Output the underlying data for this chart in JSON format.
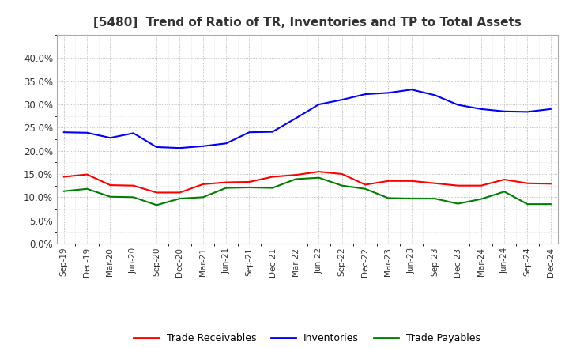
{
  "title": "[5480]  Trend of Ratio of TR, Inventories and TP to Total Assets",
  "x_labels": [
    "Sep-19",
    "Dec-19",
    "Mar-20",
    "Jun-20",
    "Sep-20",
    "Dec-20",
    "Mar-21",
    "Jun-21",
    "Sep-21",
    "Dec-21",
    "Mar-22",
    "Jun-22",
    "Sep-22",
    "Dec-22",
    "Mar-23",
    "Jun-23",
    "Sep-23",
    "Dec-23",
    "Mar-24",
    "Jun-24",
    "Sep-24",
    "Dec-24"
  ],
  "trade_receivables": [
    0.144,
    0.149,
    0.126,
    0.125,
    0.11,
    0.11,
    0.128,
    0.132,
    0.133,
    0.144,
    0.148,
    0.155,
    0.15,
    0.127,
    0.135,
    0.135,
    0.13,
    0.125,
    0.125,
    0.138,
    0.13,
    0.129
  ],
  "inventories": [
    0.24,
    0.239,
    0.228,
    0.238,
    0.208,
    0.206,
    0.21,
    0.216,
    0.24,
    0.241,
    0.27,
    0.3,
    0.31,
    0.322,
    0.325,
    0.332,
    0.32,
    0.299,
    0.29,
    0.285,
    0.284,
    0.29
  ],
  "trade_payables": [
    0.113,
    0.118,
    0.101,
    0.1,
    0.083,
    0.097,
    0.1,
    0.12,
    0.121,
    0.12,
    0.139,
    0.142,
    0.125,
    0.118,
    0.098,
    0.097,
    0.097,
    0.086,
    0.096,
    0.112,
    0.085,
    0.085
  ],
  "tr_color": "#ff0000",
  "inv_color": "#0000ff",
  "tp_color": "#008000",
  "ylim": [
    0.0,
    0.45
  ],
  "yticks": [
    0.0,
    0.05,
    0.1,
    0.15,
    0.2,
    0.25,
    0.3,
    0.35,
    0.4
  ],
  "background_color": "#ffffff",
  "grid_color": "#aaaaaa",
  "title_fontsize": 11,
  "title_color": "#333333",
  "legend_labels": [
    "Trade Receivables",
    "Inventories",
    "Trade Payables"
  ]
}
